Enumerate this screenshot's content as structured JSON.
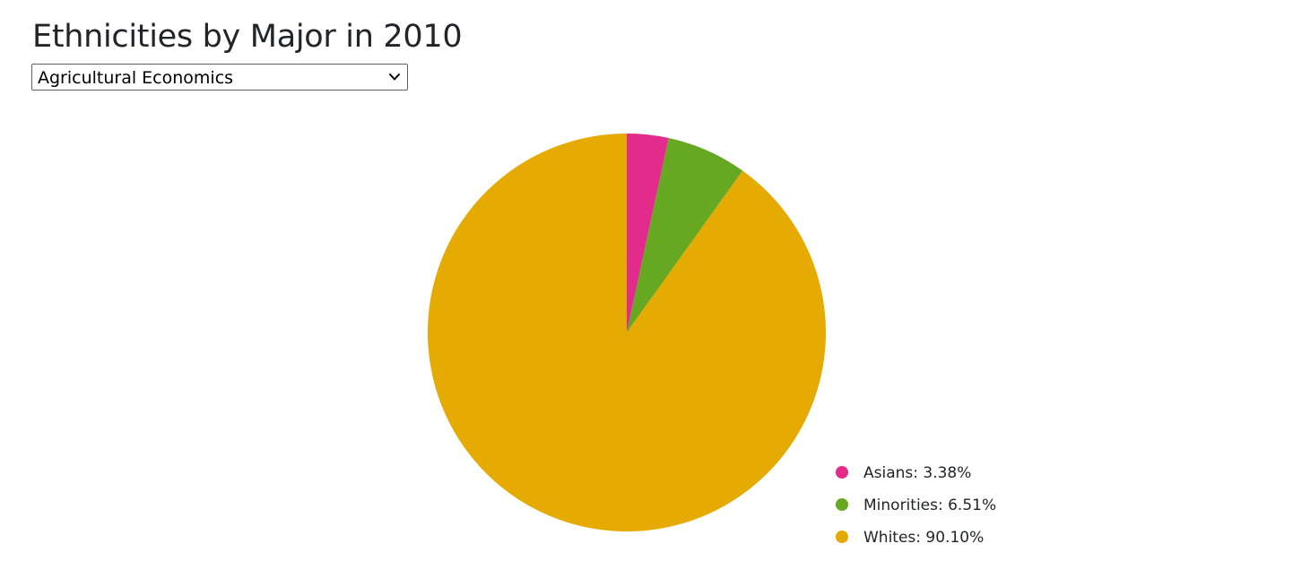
{
  "header": {
    "title": "Ethnicities by Major in 2010"
  },
  "major_select": {
    "selected": "Agricultural Economics"
  },
  "chart_data": {
    "type": "pie",
    "title": "Ethnicities by Major in 2010",
    "legend_position": "bottom-right",
    "slices": [
      {
        "label": "Asians",
        "value": 3.38,
        "display": "Asians: 3.38%",
        "color": "#e32b8b"
      },
      {
        "label": "Minorities",
        "value": 6.51,
        "display": "Minorities: 6.51%",
        "color": "#67a823"
      },
      {
        "label": "Whites",
        "value": 90.1,
        "display": "Whites: 90.10%",
        "color": "#e6ab02"
      }
    ]
  }
}
